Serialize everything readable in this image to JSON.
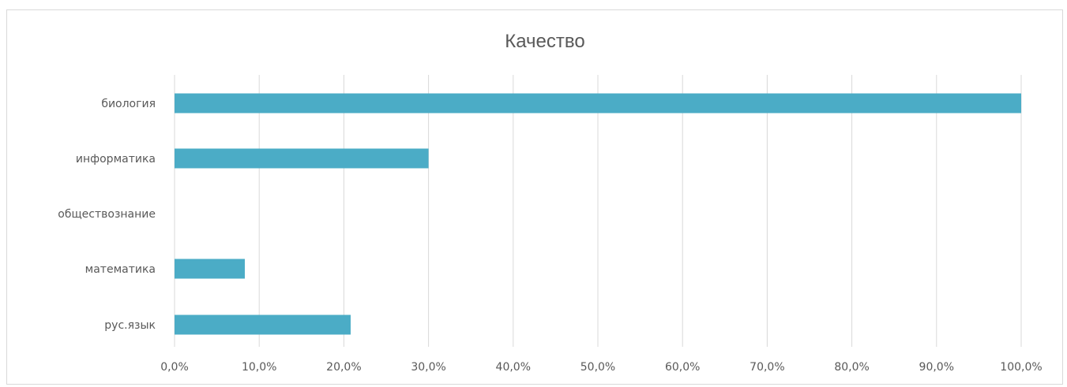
{
  "chart_data": {
    "type": "bar",
    "orientation": "horizontal",
    "title": "Качество",
    "categories": [
      "биология",
      "информатика",
      "обществознание",
      "математика",
      "рус.язык"
    ],
    "values": [
      100.0,
      30.0,
      0.0,
      8.3,
      20.8
    ],
    "value_unit": "%",
    "xlim": [
      0,
      100
    ],
    "x_ticks": [
      "0,0%",
      "10,0%",
      "20,0%",
      "30,0%",
      "40,0%",
      "50,0%",
      "60,0%",
      "70,0%",
      "80,0%",
      "90,0%",
      "100,0%"
    ],
    "xlabel": "",
    "ylabel": "",
    "grid": "vertical",
    "legend": "none",
    "bar_color": "#4bacc6"
  }
}
